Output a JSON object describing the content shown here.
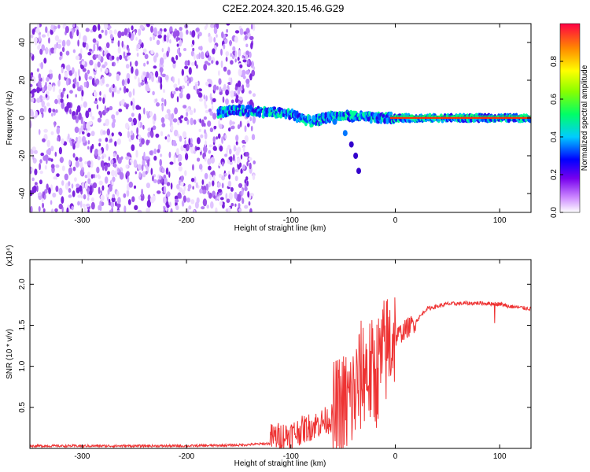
{
  "title": "C2E2.2024.320.15.46.G29",
  "chart_data": [
    {
      "type": "heatmap",
      "xlabel": "Height of straight line (km)",
      "ylabel": "Frequency (Hz)",
      "xlim": [
        -350,
        130
      ],
      "ylim": [
        -50,
        50
      ],
      "xticks": [
        -300,
        -200,
        -100,
        0,
        100
      ],
      "yticks": [
        -40,
        -20,
        0,
        20,
        40
      ],
      "colorbar": {
        "label": "Normalized spectral amplitude",
        "range": [
          0,
          1
        ],
        "ticks": [
          "0.0",
          "0.2",
          "0.4",
          "0.6",
          "0.8"
        ]
      },
      "signal_track": [
        {
          "x": -170,
          "f": 3
        },
        {
          "x": -150,
          "f": 4
        },
        {
          "x": -120,
          "f": 3
        },
        {
          "x": -100,
          "f": 2
        },
        {
          "x": -80,
          "f": -2
        },
        {
          "x": -60,
          "f": 1
        },
        {
          "x": -40,
          "f": 1
        },
        {
          "x": -20,
          "f": 0
        },
        {
          "x": 0,
          "f": 0
        },
        {
          "x": 130,
          "f": 0
        }
      ],
      "branch_track": [
        {
          "x": -58,
          "f": -2
        },
        {
          "x": -48,
          "f": -8
        },
        {
          "x": -42,
          "f": -14
        },
        {
          "x": -38,
          "f": -20
        },
        {
          "x": -35,
          "f": -28
        }
      ]
    },
    {
      "type": "line",
      "xlabel": "Height of straight line (km)",
      "ylabel": "SNR (10 * v/v)",
      "y_multiplier": "(x10⁴)",
      "xlim": [
        -350,
        130
      ],
      "ylim": [
        0,
        2.3
      ],
      "xticks": [
        -300,
        -200,
        -100,
        0,
        100
      ],
      "yticks": [
        "0.5",
        "1.0",
        "1.5",
        "2.0"
      ],
      "series": [
        {
          "color": "#ee3333",
          "x": [
            -350,
            -300,
            -250,
            -200,
            -150,
            -120,
            -100,
            -80,
            -60,
            -40,
            -30,
            -20,
            -10,
            0,
            10,
            20,
            30,
            50,
            80,
            100,
            110,
            130
          ],
          "y": [
            0.03,
            0.03,
            0.03,
            0.03,
            0.04,
            0.06,
            0.1,
            0.2,
            0.3,
            0.55,
            0.9,
            0.8,
            1.1,
            1.35,
            1.45,
            1.55,
            1.7,
            1.76,
            1.77,
            1.76,
            1.73,
            1.7
          ]
        }
      ]
    }
  ]
}
